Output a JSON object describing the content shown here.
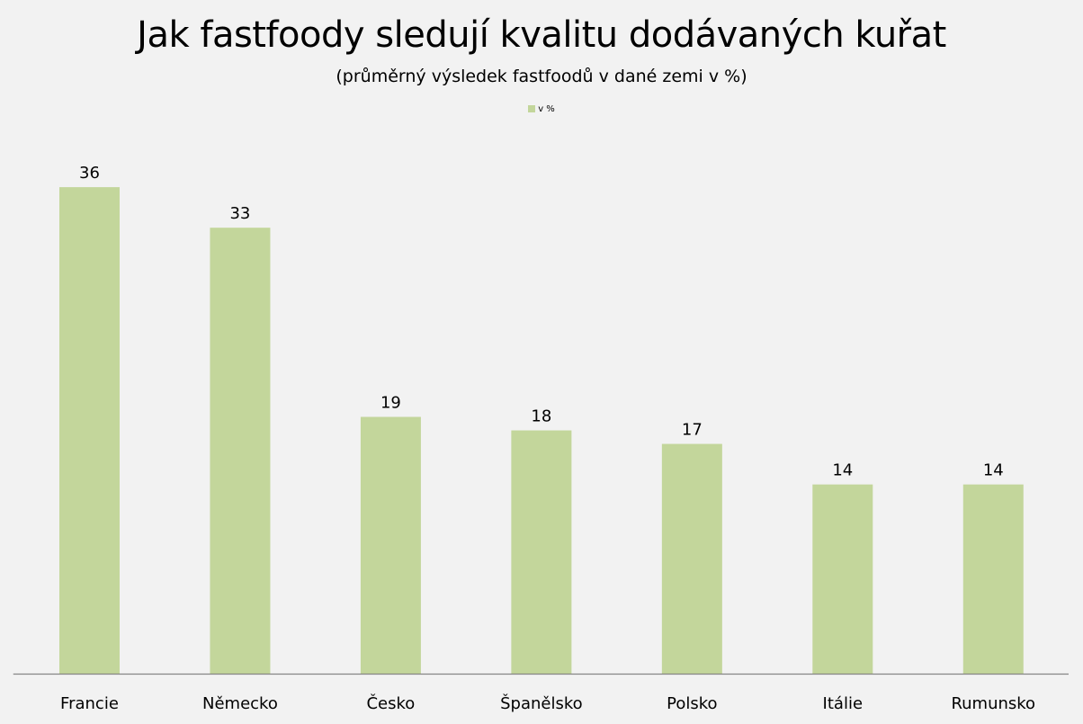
{
  "chart_data": {
    "type": "bar",
    "title": "Jak fastfoody sledují kvalitu dodávaných kuřat",
    "subtitle": "(průměrný výsledek fastfoodů v dané zemi v %)",
    "legend": {
      "entries": [
        "v %"
      ],
      "position": "top"
    },
    "categories": [
      "Francie",
      "Německo",
      "Česko",
      "Španělsko",
      "Polsko",
      "Itálie",
      "Rumunsko"
    ],
    "series": [
      {
        "name": "v %",
        "values": [
          36,
          33,
          19,
          18,
          17,
          14,
          14
        ],
        "color": "#c3d69b"
      }
    ],
    "xlabel": "",
    "ylabel": "",
    "ylim": [
      0,
      40
    ],
    "grid": false,
    "data_labels": true
  }
}
